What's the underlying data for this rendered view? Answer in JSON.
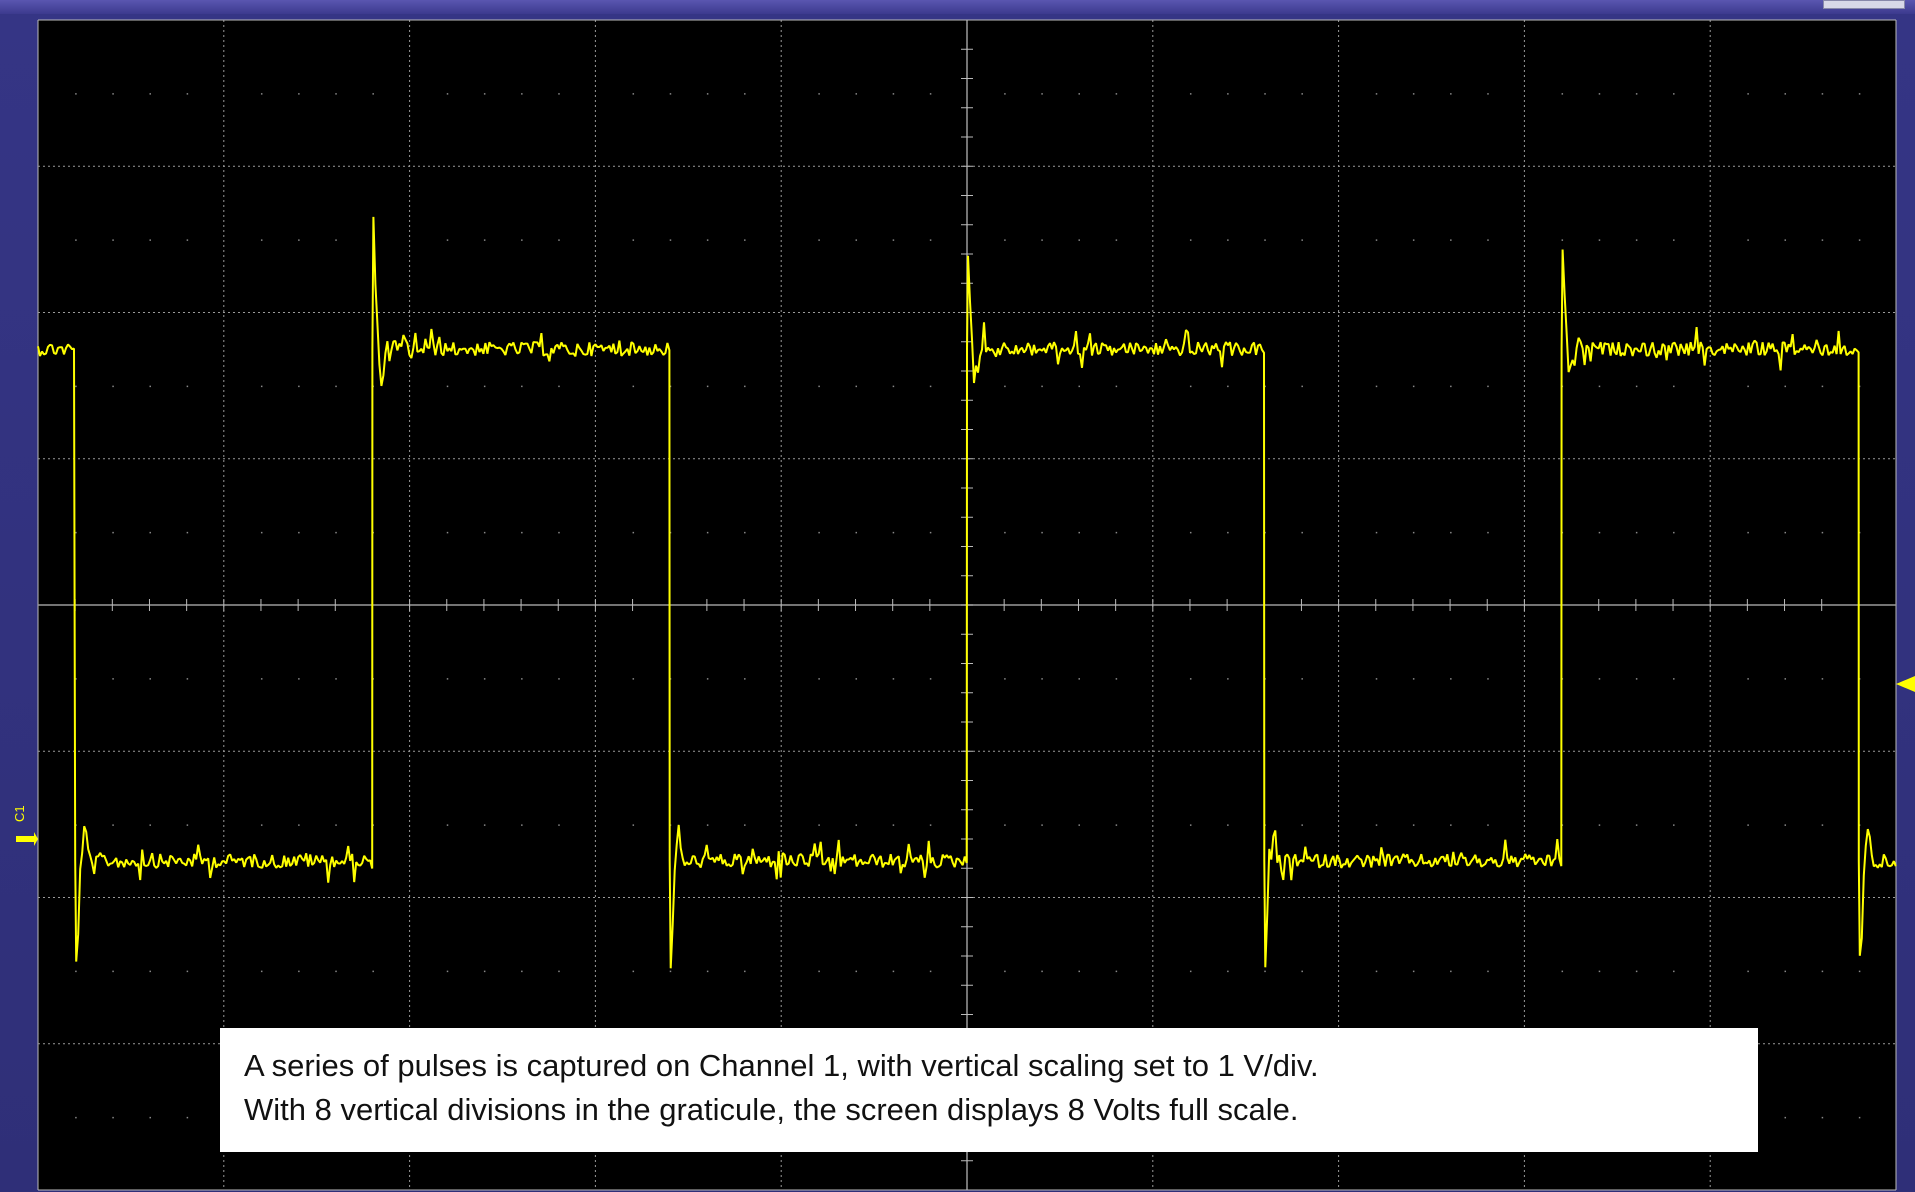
{
  "channel_label": "C1",
  "caption": {
    "line1": "A series of pulses is captured on Channel 1, with vertical scaling set to 1 V/div.",
    "line2": "With 8 vertical divisions in the graticule, the screen displays 8 Volts full scale."
  },
  "trace": {
    "color": "#ffff00",
    "pulse_edges_div": [
      0.2,
      1.8,
      3.4,
      5.0,
      6.6,
      8.2,
      9.8
    ],
    "starts_high": true,
    "high_level_div": 1.75,
    "low_level_div": -1.75
  },
  "graticule": {
    "h_divisions": 10,
    "v_divisions": 8,
    "color": "#9a9a9a"
  }
}
